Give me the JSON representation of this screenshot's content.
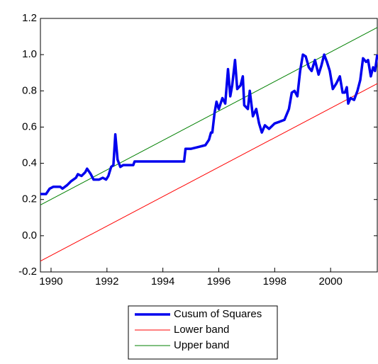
{
  "chart_data": {
    "type": "line",
    "xlim": [
      1989.62,
      2001.67
    ],
    "ylim": [
      -0.2,
      1.2
    ],
    "xticks": [
      1990,
      1992,
      1994,
      1996,
      1998,
      2000
    ],
    "yticks": [
      -0.2,
      {
        "value": 0.0,
        "label": "0.0"
      },
      0.2,
      0.4,
      0.6,
      0.8,
      {
        "value": 1.0,
        "label": "1.0"
      },
      1.2
    ],
    "legend": "bottom",
    "series": [
      {
        "name": "Cusum of Squares",
        "color": "#0000ee",
        "x": [
          1989.62,
          1989.82,
          1989.95,
          1990.08,
          1990.33,
          1990.41,
          1990.58,
          1990.71,
          1990.89,
          1990.96,
          1991.09,
          1991.22,
          1991.29,
          1991.42,
          1991.52,
          1991.72,
          1991.85,
          1991.97,
          1992.05,
          1992.15,
          1992.23,
          1992.3,
          1992.38,
          1992.48,
          1992.58,
          1992.73,
          1992.94,
          1992.99,
          1993.24,
          1993.62,
          1993.7,
          1993.87,
          1994.05,
          1994.51,
          1994.76,
          1994.81,
          1995.01,
          1995.27,
          1995.52,
          1995.65,
          1995.72,
          1995.77,
          1995.85,
          1995.92,
          1996.0,
          1996.13,
          1996.23,
          1996.33,
          1996.41,
          1996.48,
          1996.58,
          1996.66,
          1996.78,
          1996.86,
          1996.91,
          1997.04,
          1997.11,
          1997.22,
          1997.34,
          1997.44,
          1997.54,
          1997.65,
          1997.8,
          1998.0,
          1998.18,
          1998.35,
          1998.51,
          1998.61,
          1998.71,
          1998.81,
          1998.91,
          1999.01,
          1999.11,
          1999.22,
          1999.32,
          1999.44,
          1999.57,
          1999.67,
          1999.77,
          1999.87,
          1999.97,
          2000.08,
          2000.2,
          2000.33,
          2000.43,
          2000.51,
          2000.58,
          2000.63,
          2000.71,
          2000.84,
          2000.96,
          2001.06,
          2001.16,
          2001.27,
          2001.34,
          2001.44,
          2001.52,
          2001.59,
          2001.67
        ],
        "values": [
          0.23,
          0.23,
          0.26,
          0.27,
          0.27,
          0.26,
          0.28,
          0.3,
          0.32,
          0.34,
          0.33,
          0.35,
          0.37,
          0.34,
          0.31,
          0.31,
          0.32,
          0.31,
          0.33,
          0.38,
          0.39,
          0.56,
          0.42,
          0.38,
          0.39,
          0.39,
          0.39,
          0.41,
          0.41,
          0.41,
          0.41,
          0.41,
          0.41,
          0.41,
          0.41,
          0.48,
          0.48,
          0.49,
          0.5,
          0.53,
          0.57,
          0.57,
          0.68,
          0.74,
          0.7,
          0.76,
          0.73,
          0.92,
          0.77,
          0.83,
          0.97,
          0.81,
          0.83,
          0.88,
          0.72,
          0.7,
          0.8,
          0.66,
          0.7,
          0.62,
          0.57,
          0.61,
          0.59,
          0.62,
          0.63,
          0.64,
          0.7,
          0.79,
          0.8,
          0.77,
          0.91,
          1.0,
          0.99,
          0.93,
          0.91,
          0.97,
          0.89,
          0.94,
          1.0,
          0.96,
          0.91,
          0.81,
          0.84,
          0.88,
          0.79,
          0.79,
          0.82,
          0.73,
          0.76,
          0.75,
          0.8,
          0.86,
          0.98,
          0.96,
          0.97,
          0.88,
          0.93,
          0.91,
          1.0
        ]
      },
      {
        "name": "Lower band",
        "color": "#ff0000",
        "x": [
          1989.62,
          2001.67
        ],
        "values": [
          -0.14,
          0.84
        ]
      },
      {
        "name": "Upper band",
        "color": "#008000",
        "x": [
          1989.62,
          2001.67
        ],
        "values": [
          0.17,
          1.15
        ]
      }
    ]
  }
}
